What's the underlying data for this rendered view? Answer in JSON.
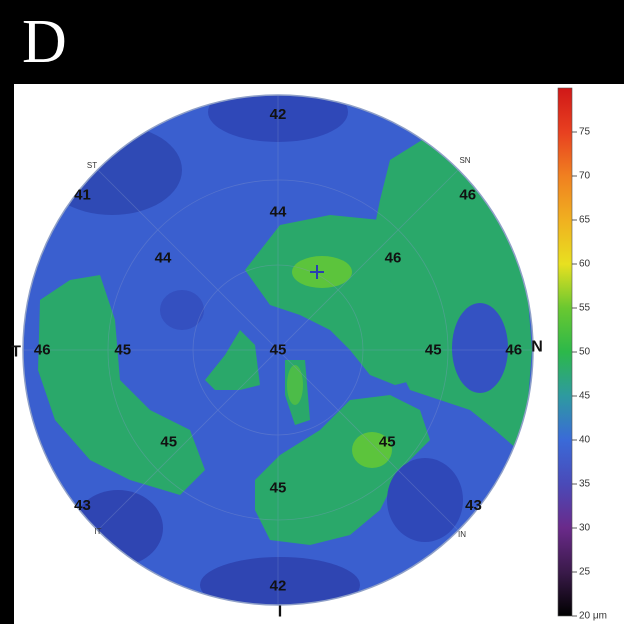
{
  "panel_label": "D",
  "chart_data": {
    "type": "heatmap",
    "title": "",
    "orientation_labels": {
      "temporal": "T",
      "nasal": "N",
      "inferior": "I"
    },
    "quadrant_labels": [
      "ST",
      "SN",
      "IT",
      "IN"
    ],
    "values": [
      {
        "label": "42",
        "x": 0,
        "y": 4.1
      },
      {
        "label": "41",
        "x": -3.4,
        "y": 2.7
      },
      {
        "label": "46",
        "x": 3.3,
        "y": 2.7
      },
      {
        "label": "44",
        "x": 0,
        "y": 2.4
      },
      {
        "label": "44",
        "x": -2.0,
        "y": 1.6
      },
      {
        "label": "46",
        "x": 2.0,
        "y": 1.6
      },
      {
        "label": "46",
        "x": -4.1,
        "y": 0
      },
      {
        "label": "45",
        "x": -2.7,
        "y": 0
      },
      {
        "label": "45",
        "x": 0,
        "y": 0
      },
      {
        "label": "45",
        "x": 2.7,
        "y": 0
      },
      {
        "label": "46",
        "x": 4.1,
        "y": 0
      },
      {
        "label": "45",
        "x": -1.9,
        "y": -1.6
      },
      {
        "label": "45",
        "x": 1.9,
        "y": -1.6
      },
      {
        "label": "45",
        "x": 0,
        "y": -2.4
      },
      {
        "label": "43",
        "x": -3.4,
        "y": -2.7
      },
      {
        "label": "43",
        "x": 3.4,
        "y": -2.7
      },
      {
        "label": "42",
        "x": 0,
        "y": -4.1
      }
    ],
    "colorbar": {
      "ticks": [
        75,
        70,
        65,
        60,
        55,
        50,
        45,
        40,
        35,
        30,
        25,
        20
      ],
      "unit_label": "20 μm",
      "range": [
        20,
        80
      ],
      "stops": [
        {
          "value": 20,
          "color": "#000000"
        },
        {
          "value": 25,
          "color": "#3a1a4a"
        },
        {
          "value": 30,
          "color": "#6a2a8a"
        },
        {
          "value": 35,
          "color": "#4a4ab8"
        },
        {
          "value": 40,
          "color": "#3a6ad8"
        },
        {
          "value": 45,
          "color": "#2e9aa0"
        },
        {
          "value": 50,
          "color": "#2cb84a"
        },
        {
          "value": 55,
          "color": "#6ac830"
        },
        {
          "value": 60,
          "color": "#e8e020"
        },
        {
          "value": 65,
          "color": "#f0b020"
        },
        {
          "value": 70,
          "color": "#f08020"
        },
        {
          "value": 75,
          "color": "#e84020"
        },
        {
          "value": 80,
          "color": "#d01818"
        }
      ]
    }
  }
}
